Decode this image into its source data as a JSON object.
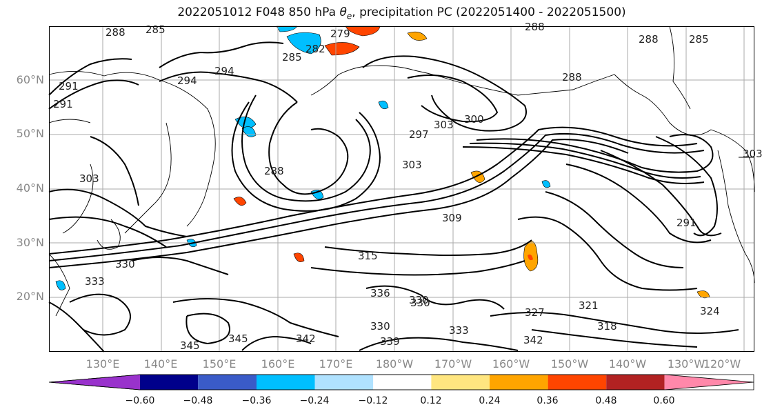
{
  "title": "2022051012 F048 850 hPa θe, precipitation PC (2022051400 - 2022051500)",
  "map": {
    "lat_labels": [
      "60°N",
      "50°N",
      "40°N",
      "30°N",
      "20°N"
    ],
    "lon_labels": [
      "130°E",
      "140°E",
      "150°E",
      "160°E",
      "170°E",
      "180°W",
      "170°W",
      "160°W",
      "150°W",
      "140°W",
      "130°W",
      "120°W"
    ],
    "contour_labels": [
      "288",
      "285",
      "279",
      "282",
      "285",
      "294",
      "294",
      "291",
      "291",
      "288",
      "303",
      "300",
      "297",
      "303",
      "288",
      "303",
      "309",
      "315",
      "330",
      "333",
      "336",
      "330",
      "330",
      "333",
      "342",
      "345",
      "342",
      "339",
      "345",
      "321",
      "324",
      "318",
      "291",
      "288",
      "285",
      "288",
      "303",
      "327",
      "330"
    ],
    "colors": {
      "land": "#000000",
      "grid": "#aaaaaa",
      "contour": "#000000"
    }
  },
  "colorbar": {
    "ticks": [
      "−0.60",
      "−0.48",
      "−0.36",
      "−0.24",
      "−0.12",
      "0.12",
      "0.24",
      "0.36",
      "0.48",
      "0.60"
    ],
    "colors": [
      "#9932cc",
      "#00008b",
      "#3a5bc8",
      "#00bfff",
      "#b0e2ff",
      "#ffffff",
      "#ffe680",
      "#ffa500",
      "#ff4500",
      "#b22222",
      "#ff88aa"
    ]
  }
}
